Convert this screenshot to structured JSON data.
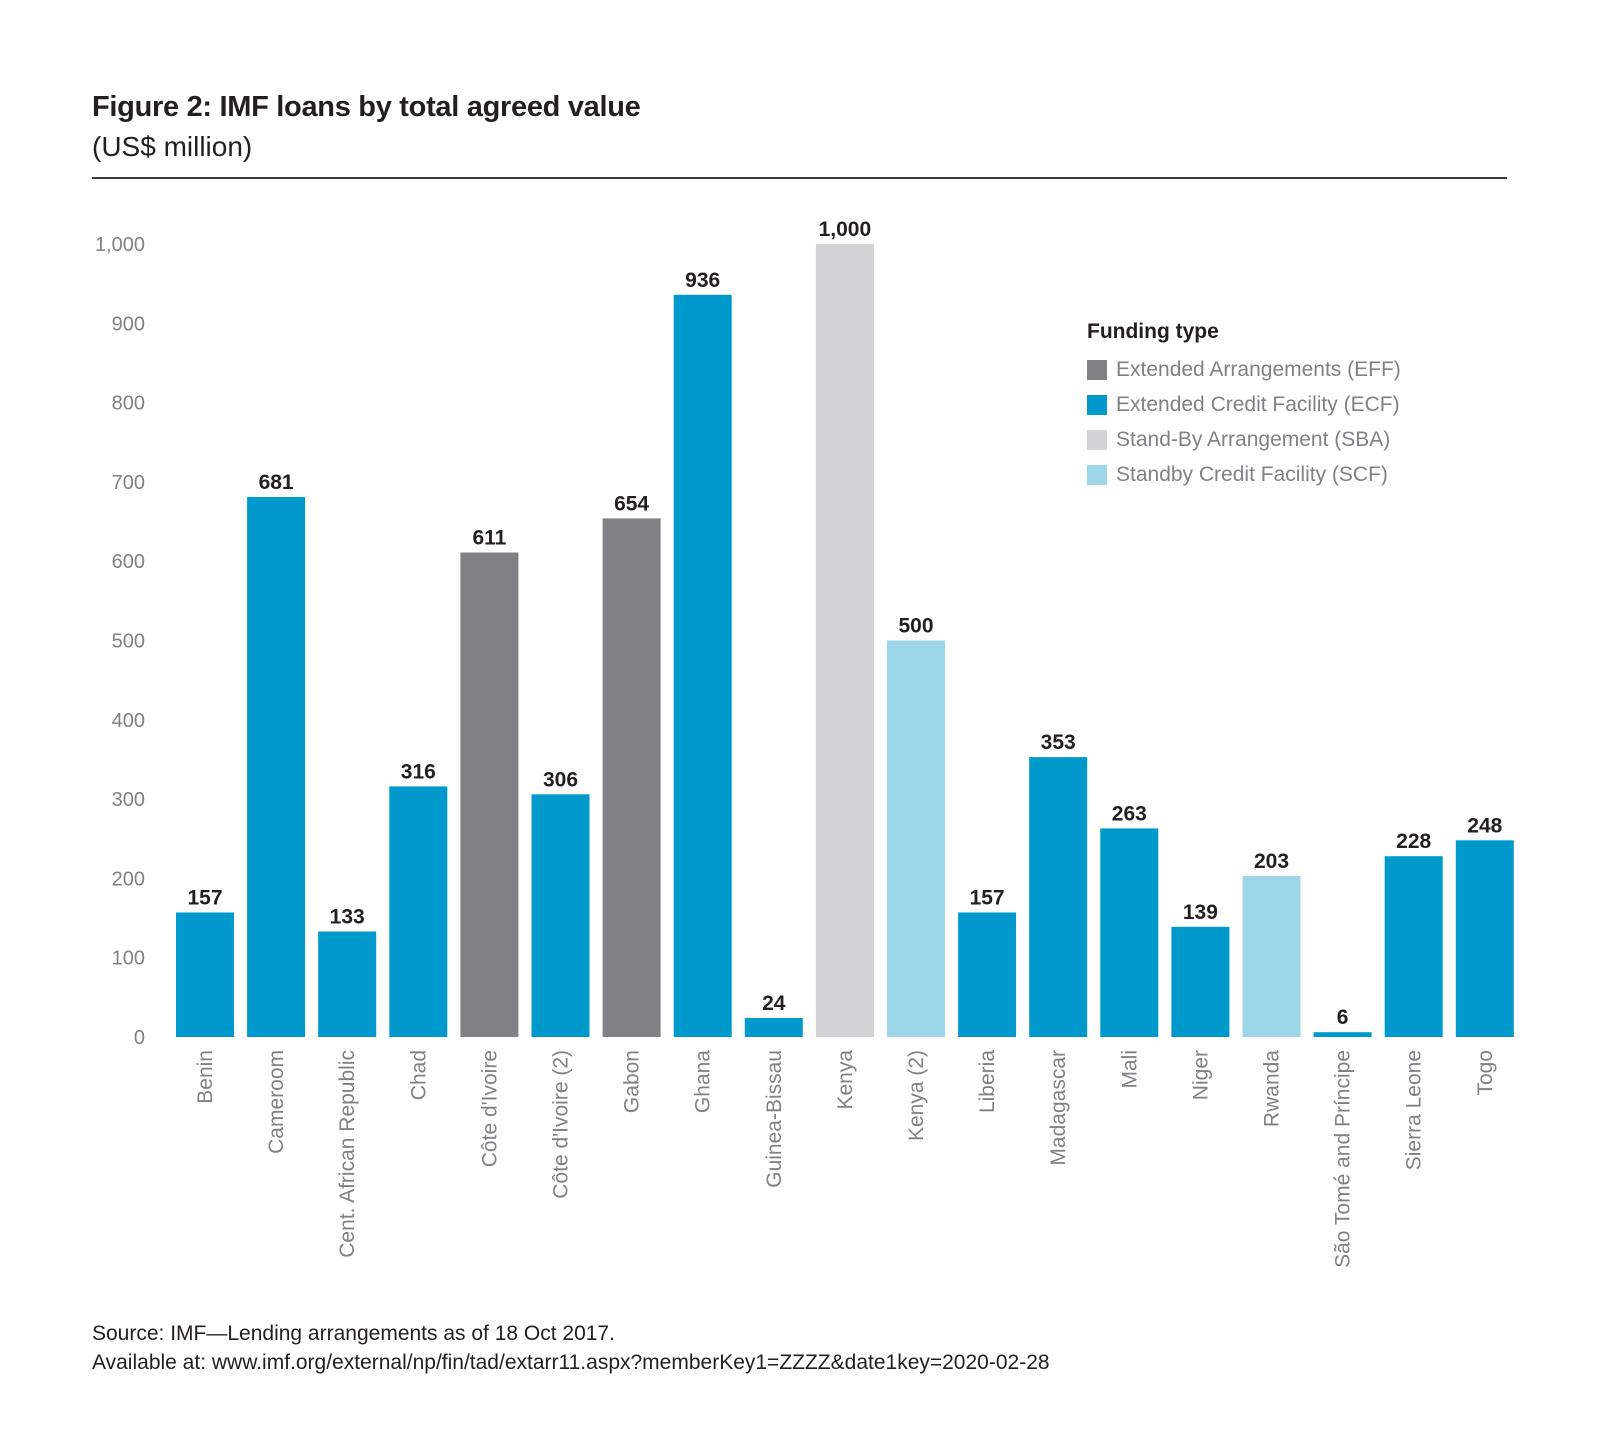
{
  "header": {
    "title": "Figure 2:  IMF loans by total agreed value",
    "subtitle": "(US$ million)"
  },
  "legend": {
    "title": "Funding type",
    "items": [
      {
        "key": "EFF",
        "label": "Extended Arrangements (EFF)",
        "color": "#808184"
      },
      {
        "key": "ECF",
        "label": "Extended Credit Facility (ECF)",
        "color": "#0099cc"
      },
      {
        "key": "SBA",
        "label": "Stand-By Arrangement (SBA)",
        "color": "#d1d2d4"
      },
      {
        "key": "SCF",
        "label": "Standby Credit Facility (SCF)",
        "color": "#9dd5e9"
      }
    ]
  },
  "footer": {
    "source": "Source: IMF—Lending arrangements as of 18 Oct 2017.",
    "available": "Available at: www.imf.org/external/np/fin/tad/extarr11.aspx?memberKey1=ZZZZ&date1key=2020-02-28"
  },
  "chart_data": {
    "type": "bar",
    "title": "Figure 2:  IMF loans by total agreed value",
    "subtitle": "(US$ million)",
    "xlabel": "",
    "ylabel": "US$ million",
    "ylim": [
      0,
      1000
    ],
    "yticks": [
      0,
      100,
      200,
      300,
      400,
      500,
      600,
      700,
      800,
      900,
      1000
    ],
    "ytick_labels": [
      "0",
      "100",
      "200",
      "300",
      "400",
      "500",
      "600",
      "700",
      "800",
      "900",
      "1,000"
    ],
    "grid": false,
    "legend_position": "top-right",
    "categories": [
      "Benin",
      "Cameroom",
      "Cent. African Republic",
      "Chad",
      "Côte d'Ivoire",
      "Côte d'Ivoire (2)",
      "Gabon",
      "Ghana",
      "Guinea-Bissau",
      "Kenya",
      "Kenya (2)",
      "Liberia",
      "Madagascar",
      "Mali",
      "Niger",
      "Rwanda",
      "São Tomé and Príncipe",
      "Sierra Leone",
      "Togo"
    ],
    "values": [
      157,
      681,
      133,
      316,
      611,
      306,
      654,
      936,
      24,
      1000,
      500,
      157,
      353,
      263,
      139,
      203,
      6,
      228,
      248
    ],
    "value_labels": [
      "157",
      "681",
      "133",
      "316",
      "611",
      "306",
      "654",
      "936",
      "24",
      "1,000",
      "500",
      "157",
      "353",
      "263",
      "139",
      "203",
      "6",
      "228",
      "248"
    ],
    "funding_types": [
      "ECF",
      "ECF",
      "ECF",
      "ECF",
      "EFF",
      "ECF",
      "EFF",
      "ECF",
      "ECF",
      "SBA",
      "SCF",
      "ECF",
      "ECF",
      "ECF",
      "ECF",
      "SCF",
      "ECF",
      "ECF",
      "ECF"
    ]
  }
}
